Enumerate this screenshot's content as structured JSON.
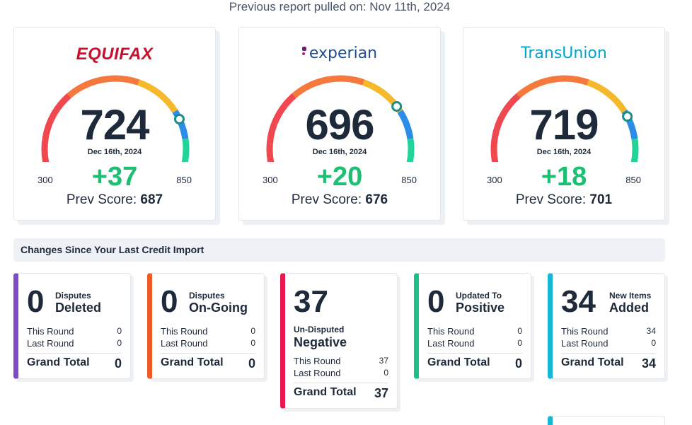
{
  "header": {
    "subtitle": "Previous report pulled on: Nov 11th, 2024"
  },
  "bureaus": [
    {
      "name": "EQUIFAX",
      "score": "724",
      "date": "Dec 16th, 2024",
      "min": "300",
      "max": "850",
      "change": "+37",
      "prev_label": "Prev Score:",
      "prev_value": "687",
      "score_fraction": 0.77,
      "color": "#c8102e"
    },
    {
      "name": "experian",
      "score": "696",
      "date": "Dec 16th, 2024",
      "min": "300",
      "max": "850",
      "change": "+20",
      "prev_label": "Prev Score:",
      "prev_value": "676",
      "score_fraction": 0.72,
      "color": "#1d4f91"
    },
    {
      "name": "TransUnion",
      "score": "719",
      "date": "Dec 16th, 2024",
      "min": "300",
      "max": "850",
      "change": "+18",
      "prev_label": "Prev Score:",
      "prev_value": "701",
      "score_fraction": 0.76,
      "color": "#00a6ca"
    }
  ],
  "section": {
    "title": "Changes Since Your Last Credit Import"
  },
  "stats": [
    {
      "value": "0",
      "label_small": "Disputes",
      "label_big": "Deleted",
      "this_round_label": "This Round",
      "this_round": "0",
      "last_round_label": "Last Round",
      "last_round": "0",
      "grand_total_label": "Grand Total",
      "grand_total": "0",
      "color": "#7b4cc4"
    },
    {
      "value": "0",
      "label_small": "Disputes",
      "label_big": "On-Going",
      "this_round_label": "This Round",
      "this_round": "0",
      "last_round_label": "Last Round",
      "last_round": "0",
      "grand_total_label": "Grand Total",
      "grand_total": "0",
      "color": "#f05a28"
    },
    {
      "value": "37",
      "label_small": "Un-Disputed",
      "label_big": "Negative",
      "this_round_label": "This Round",
      "this_round": "37",
      "last_round_label": "Last Round",
      "last_round": "0",
      "grand_total_label": "Grand Total",
      "grand_total": "37",
      "color": "#e8174f"
    },
    {
      "value": "0",
      "label_small": "Updated To",
      "label_big": "Positive",
      "this_round_label": "This Round",
      "this_round": "0",
      "last_round_label": "Last Round",
      "last_round": "0",
      "grand_total_label": "Grand Total",
      "grand_total": "0",
      "color": "#1dbf8a"
    },
    {
      "value": "34",
      "label_small": "New Items",
      "label_big": "Added",
      "this_round_label": "This Round",
      "this_round": "34",
      "last_round_label": "Last Round",
      "last_round": "0",
      "grand_total_label": "Grand Total",
      "grand_total": "34",
      "color": "#16b9d4"
    }
  ]
}
